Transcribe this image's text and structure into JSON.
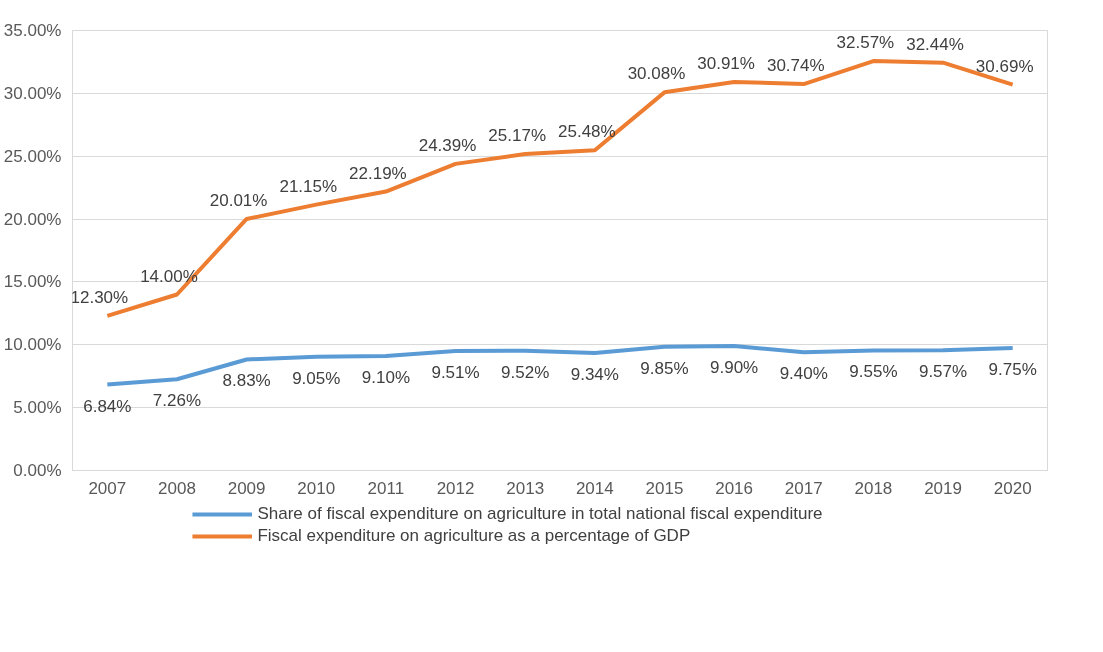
{
  "chart_data": {
    "type": "line",
    "categories": [
      "2007",
      "2008",
      "2009",
      "2010",
      "2011",
      "2012",
      "2013",
      "2014",
      "2015",
      "2016",
      "2017",
      "2018",
      "2019",
      "2020"
    ],
    "ylim": [
      0,
      35
    ],
    "yticks": [
      {
        "value": 0,
        "label": "0.00%"
      },
      {
        "value": 5,
        "label": "5.00%"
      },
      {
        "value": 10,
        "label": "10.00%"
      },
      {
        "value": 15,
        "label": "15.00%"
      },
      {
        "value": 20,
        "label": "20.00%"
      },
      {
        "value": 25,
        "label": "25.00%"
      },
      {
        "value": 30,
        "label": "30.00%"
      },
      {
        "value": 35,
        "label": "35.00%"
      }
    ],
    "grid": "y",
    "legend": "bottom",
    "marker": "none",
    "line_style": "solid",
    "series": [
      {
        "name": "Share of fiscal expenditure on agriculture in total national fiscal expenditure",
        "color": "#5b9bd5",
        "values": [
          6.84,
          7.26,
          8.83,
          9.05,
          9.1,
          9.51,
          9.52,
          9.34,
          9.85,
          9.9,
          9.4,
          9.55,
          9.57,
          9.75
        ],
        "value_labels": [
          "6.84%",
          "7.26%",
          "8.83%",
          "9.05%",
          "9.10%",
          "9.51%",
          "9.52%",
          "9.34%",
          "9.85%",
          "9.90%",
          "9.40%",
          "9.55%",
          "9.57%",
          "9.75%"
        ]
      },
      {
        "name": "Fiscal expenditure on agriculture as a percentage of GDP",
        "color": "#ed7d31",
        "values": [
          12.3,
          14.0,
          20.01,
          21.15,
          22.19,
          24.39,
          25.17,
          25.48,
          30.08,
          30.91,
          30.74,
          32.57,
          32.44,
          30.69
        ],
        "value_labels": [
          "12.30%",
          "14.00%",
          "20.01%",
          "21.15%",
          "22.19%",
          "24.39%",
          "25.17%",
          "25.48%",
          "30.08%",
          "30.91%",
          "30.74%",
          "32.57%",
          "32.44%",
          "30.69%"
        ]
      }
    ]
  }
}
